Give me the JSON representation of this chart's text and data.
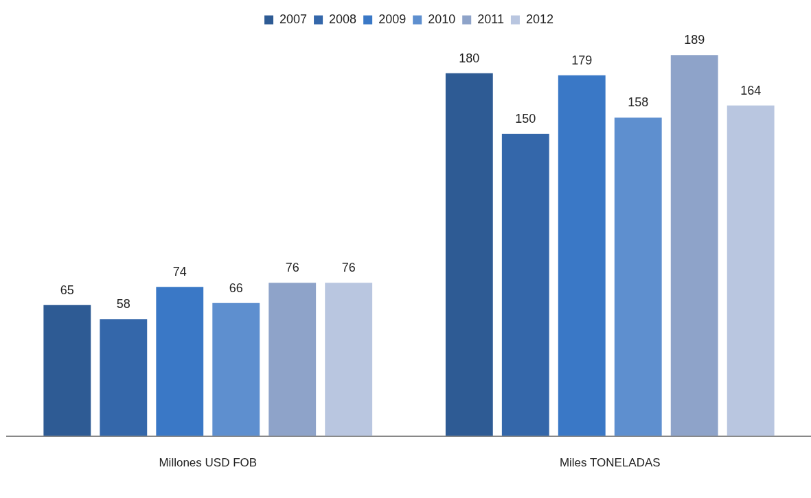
{
  "chart_data": {
    "type": "bar",
    "categories": [
      "Millones USD FOB",
      "Miles TONELADAS"
    ],
    "series": [
      {
        "name": "2007",
        "color": "#2e5b94",
        "values": [
          65,
          180
        ]
      },
      {
        "name": "2008",
        "color": "#3467aa",
        "values": [
          58,
          150
        ]
      },
      {
        "name": "2009",
        "color": "#3a78c6",
        "values": [
          74,
          179
        ]
      },
      {
        "name": "2010",
        "color": "#5e8fcf",
        "values": [
          66,
          158
        ]
      },
      {
        "name": "2011",
        "color": "#8ea3c9",
        "values": [
          76,
          189
        ]
      },
      {
        "name": "2012",
        "color": "#b9c6e0",
        "values": [
          76,
          164
        ]
      }
    ],
    "data_labels": true,
    "legend": "top",
    "grid": false
  }
}
